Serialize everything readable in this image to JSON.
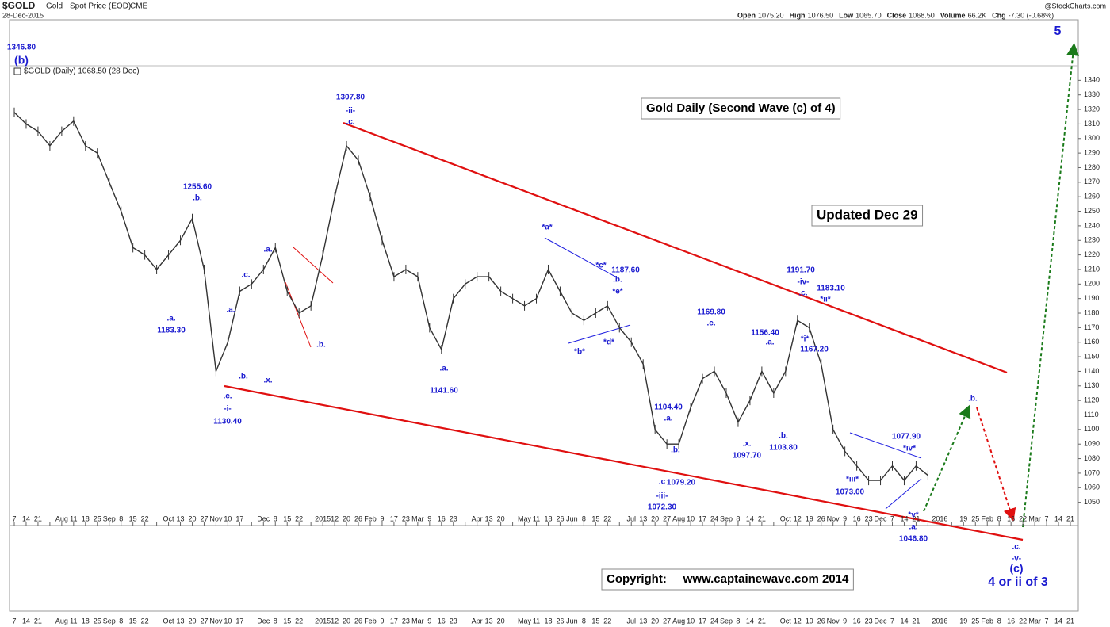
{
  "header": {
    "symbol": "$GOLD",
    "description": "Gold - Spot Price (EOD)",
    "exchange": "CME",
    "date": "28-Dec-2015",
    "source": "@StockCharts.com",
    "quote": [
      [
        "Open",
        "1075.20"
      ],
      [
        "High",
        "1076.50"
      ],
      [
        "Low",
        "1065.70"
      ],
      [
        "Close",
        "1068.50"
      ],
      [
        "Volume",
        "66.2K"
      ],
      [
        "Chg",
        "-7.30 (-0.68%)"
      ]
    ]
  },
  "chart_data": {
    "type": "line",
    "legend": "$GOLD (Daily) 1068.50 (28 Dec)",
    "color": "#333333",
    "grid": false,
    "categories": [
      "7",
      "14",
      "21",
      null,
      "Aug",
      "11",
      "18",
      "25",
      "Sep",
      "8",
      "15",
      "22",
      null,
      "Oct",
      "13",
      "20",
      "27",
      "Nov",
      "10",
      "17",
      null,
      "Dec",
      "8",
      "15",
      "22",
      null,
      "2015",
      "12",
      "20",
      "26",
      "Feb",
      "9",
      "17",
      "23",
      "Mar",
      "9",
      "16",
      "23",
      null,
      "Apr",
      "13",
      "20",
      null,
      "May",
      "11",
      "18",
      "26",
      "Jun",
      "8",
      "15",
      "22",
      null,
      "Jul",
      "13",
      "20",
      "27",
      "Aug",
      "10",
      "17",
      "24",
      "Sep",
      "8",
      "14",
      "21",
      null,
      "Oct",
      "12",
      "19",
      "26",
      "Nov",
      "9",
      "16",
      "23",
      "Dec",
      "7",
      "14",
      "21",
      null,
      "2016",
      null,
      "19",
      "25",
      "Feb",
      "8",
      "16",
      "22",
      "Mar",
      "7",
      "14",
      "21"
    ],
    "values": [
      1318,
      1310,
      1305,
      1295,
      1305,
      1312,
      1295,
      1290,
      1270,
      1250,
      1225,
      1220,
      1210,
      1220,
      1230,
      1245,
      1210,
      1140,
      1160,
      1195,
      1200,
      1210,
      1225,
      1195,
      1180,
      1185,
      1220,
      1260,
      1295,
      1285,
      1260,
      1230,
      1205,
      1210,
      1205,
      1170,
      1155,
      1190,
      1200,
      1205,
      1205,
      1195,
      1190,
      1185,
      1190,
      1210,
      1195,
      1180,
      1175,
      1180,
      1185,
      1170,
      1160,
      1145,
      1100,
      1090,
      1090,
      1115,
      1135,
      1140,
      1125,
      1105,
      1120,
      1140,
      1125,
      1140,
      1175,
      1170,
      1145,
      1100,
      1085,
      1075,
      1065,
      1065,
      1075,
      1065,
      1075,
      1068.5,
      null,
      null,
      null,
      null,
      null,
      null,
      null,
      null,
      null,
      null,
      null,
      null
    ],
    "ylim": [
      1034,
      1350
    ],
    "yticks": [
      1050,
      1060,
      1070,
      1080,
      1090,
      1100,
      1110,
      1120,
      1130,
      1140,
      1150,
      1160,
      1170,
      1180,
      1190,
      1200,
      1210,
      1220,
      1230,
      1240,
      1250,
      1260,
      1270,
      1280,
      1290,
      1300,
      1310,
      1320,
      1330,
      1340
    ],
    "annotations": [
      "1346.80",
      "(b)",
      "5",
      "1307.80",
      "-ii-",
      ".c.",
      "1255.60",
      ".b.",
      ".a.",
      "1183.30",
      ".a.",
      ".c.",
      ".a.",
      ".b.",
      ".x.",
      ".b.",
      ".c.",
      "-i-",
      "1130.40",
      "*a*",
      "*c*",
      "1187.60",
      ".b.",
      "*e*",
      "*d*",
      "*b*",
      ".a.",
      "1141.60",
      "1169.80",
      ".c.",
      "1156.40",
      ".a.",
      "1191.70",
      "-iv-",
      ".c.",
      "1183.10",
      "*ii*",
      "*i*",
      "1167.20",
      ".x.",
      "1097.70",
      ".b.",
      "1103.80",
      "1104.40",
      ".a.",
      ".b.",
      ".c",
      "1079.20",
      "-iii-",
      "1072.30",
      ".b.",
      "1077.90",
      "*iv*",
      "*iii*",
      "1073.00",
      "*v*",
      ".a.",
      "1046.80",
      ".c.",
      "-v-",
      "(c)",
      "4 or ii of 3"
    ],
    "boxes": [
      "Gold Daily (Second Wave (c) of 4)",
      "Updated Dec 29",
      "Copyright:     www.captainewave.com 2014"
    ]
  }
}
